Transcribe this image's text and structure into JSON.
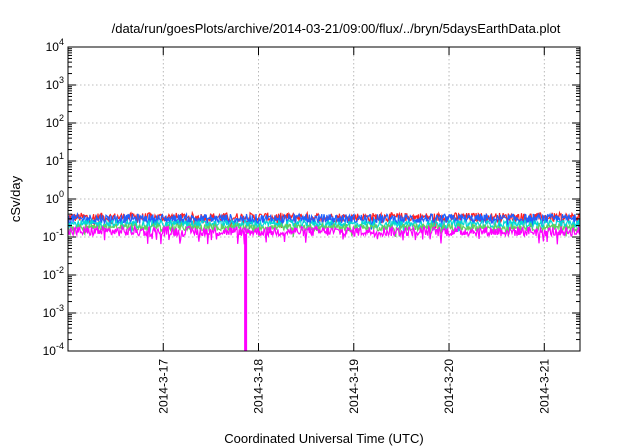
{
  "chart_data": {
    "type": "line",
    "title": "/data/run/goesPlots/archive/2014-03-21/09:00/flux/../bryn/5daysEarthData.plot",
    "xlabel": "Coordinated Universal Time (UTC)",
    "ylabel": "cSv/day",
    "x_range": [
      "2014-03-16T00:00",
      "2014-03-21T09:00"
    ],
    "y_range": [
      0.0001,
      10000
    ],
    "y_scale": "log",
    "grid": true,
    "x_ticks": [
      {
        "date": "2014-03-17T00:00",
        "label": "2014-3-17"
      },
      {
        "date": "2014-03-18T00:00",
        "label": "2014-3-18"
      },
      {
        "date": "2014-03-19T00:00",
        "label": "2014-3-19"
      },
      {
        "date": "2014-03-20T00:00",
        "label": "2014-3-20"
      },
      {
        "date": "2014-03-21T00:00",
        "label": "2014-3-21"
      }
    ],
    "y_ticks": [
      {
        "value": 0.0001,
        "base": "10",
        "exp": "-4"
      },
      {
        "value": 0.001,
        "base": "10",
        "exp": "-3"
      },
      {
        "value": 0.01,
        "base": "10",
        "exp": "-2"
      },
      {
        "value": 0.1,
        "base": "10",
        "exp": "-1"
      },
      {
        "value": 1,
        "base": "10",
        "exp": "0"
      },
      {
        "value": 10,
        "base": "10",
        "exp": "1"
      },
      {
        "value": 100,
        "base": "10",
        "exp": "2"
      },
      {
        "value": 1000,
        "base": "10",
        "exp": "3"
      },
      {
        "value": 10000,
        "base": "10",
        "exp": "4"
      }
    ],
    "series": [
      {
        "color": "#ff2020",
        "typical": 0.33,
        "range": [
          0.24,
          0.48
        ]
      },
      {
        "color": "#1e60ff",
        "typical": 0.3,
        "range": [
          0.2,
          0.42
        ]
      },
      {
        "color": "#00d8d8",
        "typical": 0.22,
        "range": [
          0.17,
          0.3
        ]
      },
      {
        "color": "#60d060",
        "typical": 0.18,
        "range": [
          0.14,
          0.24
        ]
      },
      {
        "color": "#ff00ff",
        "typical": 0.14,
        "range": [
          0.09,
          0.19
        ]
      }
    ],
    "events": [
      {
        "date": "2014-03-17T20:45",
        "color": "#ff00ff",
        "min_value": 0.0001
      }
    ]
  }
}
